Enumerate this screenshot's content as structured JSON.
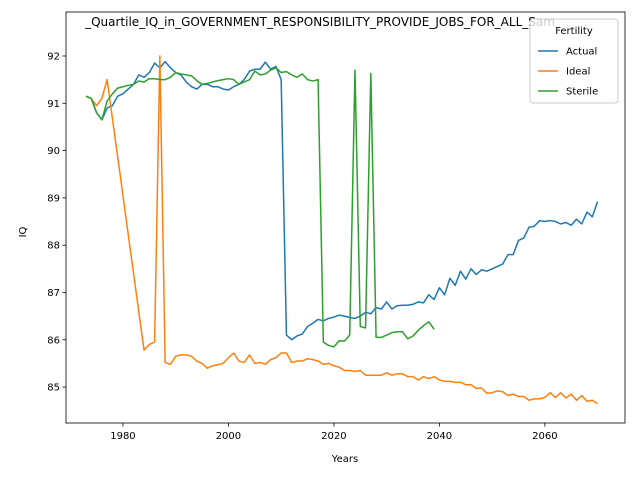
{
  "chart_data": {
    "type": "line",
    "title": "_Quartile_IQ_in_GOVERNMENT_RESPONSIBILITY_PROVIDE_JOBS_FOR_ALL_Sam",
    "x_label": "Years",
    "y_label": "IQ",
    "x": [
      1973,
      1974,
      1975,
      1976,
      1977,
      1978,
      1979,
      1980,
      1981,
      1982,
      1983,
      1984,
      1985,
      1986,
      1987,
      1988,
      1989,
      1990,
      1991,
      1992,
      1993,
      1994,
      1995,
      1996,
      1997,
      1998,
      1999,
      2000,
      2001,
      2002,
      2003,
      2004,
      2005,
      2006,
      2007,
      2008,
      2009,
      2010,
      2011,
      2012,
      2013,
      2014,
      2015,
      2016,
      2017,
      2018,
      2019,
      2020,
      2021,
      2022,
      2023,
      2024,
      2025,
      2026,
      2027,
      2028,
      2029,
      2030,
      2031,
      2032,
      2033,
      2034,
      2035,
      2036,
      2037,
      2038,
      2039,
      2040,
      2041,
      2042,
      2043,
      2044,
      2045,
      2046,
      2047,
      2048,
      2049,
      2050,
      2051,
      2052,
      2053,
      2054,
      2055,
      2056,
      2057,
      2058,
      2059,
      2060,
      2061,
      2062,
      2063,
      2064,
      2065,
      2066,
      2067,
      2068,
      2069,
      2070
    ],
    "series": [
      {
        "name": "Actual",
        "color": "#1f77b4",
        "values": [
          91.15,
          91.1,
          90.8,
          90.65,
          90.9,
          90.95,
          91.15,
          91.2,
          91.3,
          91.4,
          91.6,
          91.55,
          91.65,
          91.85,
          91.75,
          91.88,
          91.75,
          91.65,
          91.6,
          91.45,
          91.35,
          91.3,
          91.4,
          91.4,
          91.35,
          91.35,
          91.3,
          91.28,
          91.35,
          91.4,
          91.5,
          91.68,
          91.72,
          91.72,
          91.87,
          91.72,
          91.78,
          91.5,
          86.1,
          86.0,
          86.08,
          86.12,
          86.28,
          86.35,
          86.43,
          86.4,
          86.45,
          86.48,
          86.52,
          86.5,
          86.47,
          86.45,
          86.5,
          86.58,
          86.55,
          86.68,
          86.65,
          86.8,
          86.65,
          86.72,
          86.73,
          86.73,
          86.75,
          86.8,
          86.78,
          86.95,
          86.85,
          87.1,
          86.95,
          87.3,
          87.15,
          87.45,
          87.28,
          87.5,
          87.38,
          87.48,
          87.45,
          87.5,
          87.55,
          87.6,
          87.8,
          87.8,
          88.1,
          88.15,
          88.38,
          88.4,
          88.52,
          88.5,
          88.52,
          88.5,
          88.45,
          88.48,
          88.42,
          88.55,
          88.45,
          88.7,
          88.6,
          88.92
        ]
      },
      {
        "name": "Ideal",
        "color": "#ff7f0e",
        "values": [
          91.15,
          91.1,
          90.95,
          91.1,
          91.5,
          90.68,
          89.87,
          89.05,
          88.23,
          87.41,
          86.6,
          85.78,
          85.9,
          85.95,
          92.0,
          85.52,
          85.48,
          85.65,
          85.68,
          85.68,
          85.65,
          85.55,
          85.5,
          85.4,
          85.45,
          85.47,
          85.5,
          85.62,
          85.72,
          85.55,
          85.52,
          85.68,
          85.5,
          85.52,
          85.48,
          85.58,
          85.62,
          85.72,
          85.72,
          85.52,
          85.55,
          85.55,
          85.6,
          85.58,
          85.55,
          85.48,
          85.5,
          85.45,
          85.42,
          85.35,
          85.35,
          85.33,
          85.35,
          85.25,
          85.25,
          85.25,
          85.25,
          85.3,
          85.25,
          85.28,
          85.28,
          85.22,
          85.22,
          85.15,
          85.22,
          85.18,
          85.22,
          85.15,
          85.12,
          85.12,
          85.1,
          85.1,
          85.05,
          85.05,
          84.97,
          84.98,
          84.87,
          84.88,
          84.92,
          84.9,
          84.82,
          84.85,
          84.8,
          84.8,
          84.72,
          84.75,
          84.75,
          84.78,
          84.88,
          84.78,
          84.88,
          84.77,
          84.85,
          84.72,
          84.82,
          84.7,
          84.72,
          84.65
        ]
      },
      {
        "name": "Sterile",
        "color": "#2ca02c",
        "values": [
          91.15,
          91.1,
          90.8,
          90.65,
          91.05,
          91.2,
          91.32,
          91.35,
          91.38,
          91.4,
          91.47,
          91.45,
          91.52,
          91.52,
          91.5,
          91.5,
          91.55,
          91.65,
          91.62,
          91.6,
          91.58,
          91.48,
          91.4,
          91.42,
          91.45,
          91.48,
          91.5,
          91.52,
          91.5,
          91.4,
          91.45,
          91.5,
          91.68,
          91.6,
          91.62,
          91.7,
          91.75,
          91.65,
          91.67,
          91.6,
          91.55,
          91.62,
          91.5,
          91.47,
          91.5,
          85.95,
          85.88,
          85.85,
          85.98,
          85.97,
          86.1,
          91.7,
          86.28,
          86.25,
          91.63,
          86.05,
          86.05,
          86.1,
          86.15,
          86.17,
          86.17,
          86.02,
          86.08,
          86.2,
          86.3,
          86.38,
          86.22,
          null,
          null,
          null,
          null,
          null,
          null,
          null,
          null,
          null,
          null,
          null,
          null,
          null,
          null,
          null,
          null,
          null,
          null,
          null,
          null,
          null,
          null,
          null,
          null,
          null,
          null,
          null,
          null,
          null,
          null,
          null
        ]
      }
    ],
    "xlim": [
      1969.2,
      2075.2
    ],
    "ylim": [
      84.24,
      92.93
    ],
    "xticks": [
      1980,
      2000,
      2020,
      2040,
      2060
    ],
    "yticks": [
      85,
      86,
      87,
      88,
      89,
      90,
      91,
      92
    ],
    "legend_title": "Fertility",
    "legend_loc": "upper right",
    "grid": false
  }
}
